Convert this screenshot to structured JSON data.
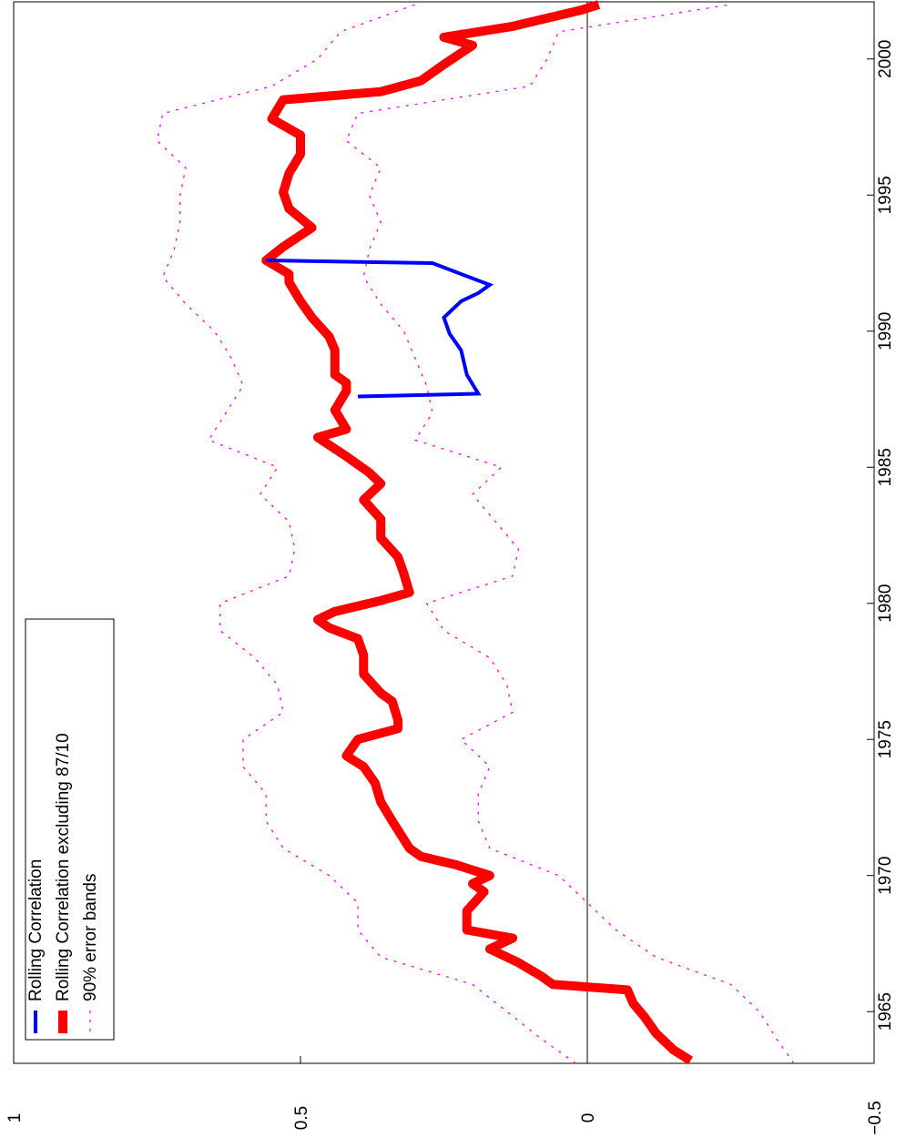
{
  "chart_data": {
    "type": "line",
    "orientation": "rotated",
    "xlim": [
      1963.1,
      2002.1
    ],
    "xticks": [
      1965,
      1970,
      1975,
      1980,
      1985,
      1990,
      1995,
      2000
    ],
    "ylim": [
      -0.5,
      1
    ],
    "yticks": [
      {
        "value": -0.5,
        "label": "−0.5"
      },
      0,
      0.5,
      1
    ],
    "zero_line": true,
    "legend": "top-left",
    "series": [
      {
        "name": "Rolling Correlation",
        "color": "#0000ff",
        "style": "solid",
        "x": [
          1987.6,
          1987.7,
          1988.4,
          1989.3,
          1989.9,
          1990.5,
          1991.1,
          1991.4,
          1991.7,
          1992.1,
          1992.5,
          1992.6
        ],
        "values": [
          0.4,
          0.19,
          0.21,
          0.22,
          0.24,
          0.25,
          0.22,
          0.19,
          0.17,
          0.22,
          0.27,
          0.56
        ]
      },
      {
        "name": "Rolling Correlation excluding 87/10",
        "color": "#ff0000",
        "style": "thick",
        "x": [
          1963.2,
          1963.6,
          1964.2,
          1964.8,
          1965.3,
          1965.8,
          1966.0,
          1966.3,
          1966.8,
          1967.3,
          1967.7,
          1968.0,
          1968.7,
          1969.4,
          1969.7,
          1970.0,
          1970.4,
          1970.7,
          1971.0,
          1972.0,
          1972.7,
          1973.4,
          1974.0,
          1974.4,
          1975.0,
          1975.4,
          1975.7,
          1976.4,
          1976.7,
          1977.4,
          1978.1,
          1978.7,
          1979.1,
          1979.4,
          1979.7,
          1980.1,
          1980.4,
          1981.1,
          1981.7,
          1982.4,
          1983.1,
          1983.8,
          1984.4,
          1984.8,
          1985.4,
          1986.1,
          1986.4,
          1987.1,
          1987.8,
          1988.1,
          1988.4,
          1989.3,
          1989.8,
          1990.5,
          1991.1,
          1991.8,
          1992.1,
          1992.6,
          1993.1,
          1993.8,
          1994.5,
          1995.1,
          1995.8,
          1996.5,
          1997.2,
          1997.8,
          1998.5,
          1998.8,
          1999.2,
          1999.8,
          2000.5,
          2000.8,
          2001.2,
          2001.8,
          2002.0
        ],
        "values": [
          -0.18,
          -0.15,
          -0.12,
          -0.1,
          -0.08,
          -0.07,
          0.06,
          0.08,
          0.12,
          0.17,
          0.13,
          0.21,
          0.21,
          0.18,
          0.2,
          0.17,
          0.23,
          0.29,
          0.31,
          0.34,
          0.36,
          0.37,
          0.39,
          0.42,
          0.4,
          0.33,
          0.33,
          0.34,
          0.36,
          0.39,
          0.39,
          0.4,
          0.45,
          0.47,
          0.44,
          0.36,
          0.31,
          0.32,
          0.33,
          0.36,
          0.36,
          0.39,
          0.36,
          0.38,
          0.42,
          0.47,
          0.42,
          0.44,
          0.42,
          0.42,
          0.44,
          0.44,
          0.45,
          0.48,
          0.5,
          0.52,
          0.52,
          0.56,
          0.53,
          0.48,
          0.52,
          0.53,
          0.52,
          0.5,
          0.5,
          0.55,
          0.53,
          0.36,
          0.29,
          0.25,
          0.2,
          0.25,
          0.13,
          0.01,
          -0.02
        ]
      },
      {
        "name": "90% error bands",
        "color": "#ff00ff",
        "style": "dotted",
        "x": [
          1963.1,
          1964,
          1965,
          1966,
          1967,
          1968,
          1969,
          1970,
          1971,
          1972,
          1973,
          1974,
          1975,
          1976,
          1977,
          1978,
          1979,
          1980,
          1981,
          1982,
          1983,
          1984,
          1985,
          1986,
          1987,
          1988,
          1989,
          1990,
          1991,
          1992,
          1993,
          1994,
          1995,
          1996,
          1997,
          1998,
          1999,
          2000,
          2001,
          2002
        ],
        "values": [
          0.02,
          0.08,
          0.14,
          0.2,
          0.36,
          0.4,
          0.4,
          0.45,
          0.53,
          0.56,
          0.56,
          0.6,
          0.6,
          0.53,
          0.54,
          0.58,
          0.64,
          0.64,
          0.52,
          0.51,
          0.52,
          0.57,
          0.54,
          0.66,
          0.63,
          0.6,
          0.62,
          0.65,
          0.7,
          0.74,
          0.72,
          0.71,
          0.71,
          0.7,
          0.75,
          0.74,
          0.55,
          0.47,
          0.43,
          0.3
        ],
        "lower": [
          -0.36,
          -0.33,
          -0.3,
          -0.25,
          -0.12,
          -0.05,
          0.0,
          0.05,
          0.17,
          0.19,
          0.19,
          0.17,
          0.22,
          0.13,
          0.14,
          0.17,
          0.25,
          0.28,
          0.13,
          0.12,
          0.16,
          0.2,
          0.15,
          0.3,
          0.27,
          0.28,
          0.3,
          0.32,
          0.36,
          0.39,
          0.38,
          0.36,
          0.38,
          0.36,
          0.42,
          0.4,
          0.1,
          0.07,
          0.05,
          -0.25
        ]
      }
    ]
  }
}
